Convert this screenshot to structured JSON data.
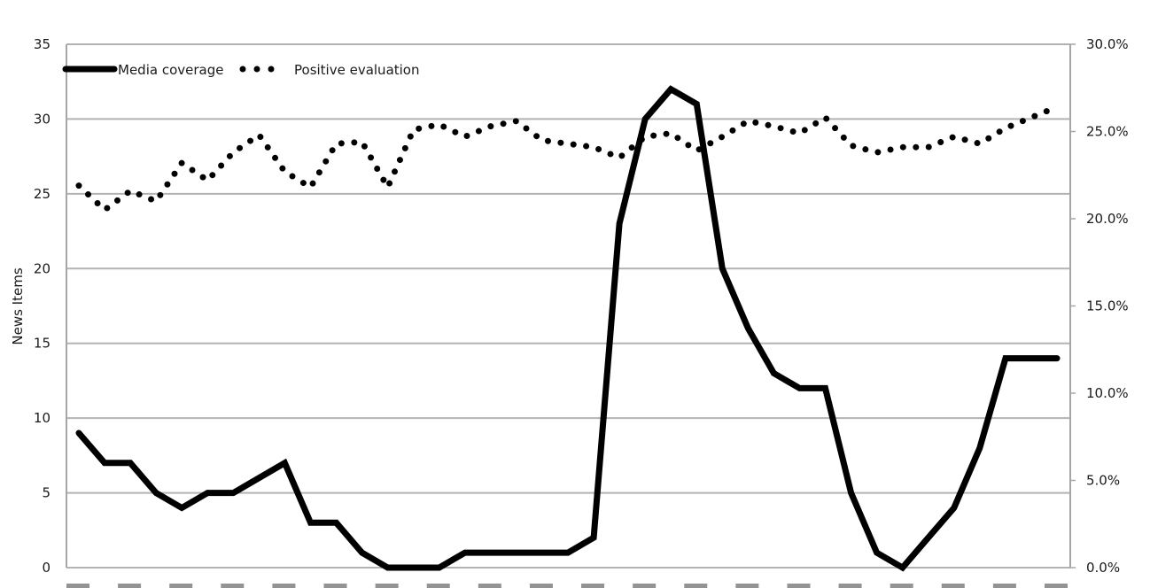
{
  "chart_data": {
    "type": "line",
    "title": "",
    "xlabel": "",
    "ylabel": "News Items",
    "ylabel_right": "",
    "ylim": [
      0,
      35
    ],
    "ylim_right": [
      0,
      30
    ],
    "yticks": [
      0,
      5,
      10,
      15,
      20,
      25,
      30,
      35
    ],
    "yticks_right": [
      "0.0%",
      "5.0%",
      "10.0%",
      "15.0%",
      "20.0%",
      "25.0%",
      "30.0%"
    ],
    "x_tick_labels_visible": false,
    "x_count": 39,
    "grid": "horizontal",
    "legend_position": "top-left-inside",
    "series": [
      {
        "name": "Media coverage",
        "axis": "left",
        "style": "solid",
        "values": [
          9,
          7,
          7,
          5,
          4,
          5,
          5,
          6,
          7,
          3,
          3,
          1,
          0,
          0,
          0,
          1,
          1,
          1,
          1,
          1,
          2,
          23,
          30,
          32,
          31,
          20,
          16,
          13,
          12,
          12,
          5,
          1,
          0,
          2,
          4,
          8,
          14,
          14,
          14
        ]
      },
      {
        "name": "Positive evaluation",
        "axis": "right",
        "unit": "%",
        "style": "dotted",
        "values": [
          21.9,
          20.5,
          21.6,
          21.0,
          23.2,
          22.2,
          23.8,
          24.8,
          22.7,
          21.8,
          24.3,
          24.4,
          21.8,
          25.1,
          25.4,
          24.7,
          25.3,
          25.6,
          24.5,
          24.3,
          24.1,
          23.5,
          24.7,
          24.9,
          23.9,
          24.7,
          25.6,
          25.3,
          24.9,
          25.8,
          24.2,
          23.8,
          24.1,
          24.1,
          24.7,
          24.3,
          25.2,
          25.8,
          26.4
        ]
      }
    ]
  },
  "legend": {
    "media_label": "Media coverage",
    "positive_label": "Positive evaluation"
  },
  "axis": {
    "left_title": "News Items"
  },
  "colors": {
    "line": "#000000",
    "grid": "#b3b3b3",
    "frame": "#a6a6a6"
  }
}
